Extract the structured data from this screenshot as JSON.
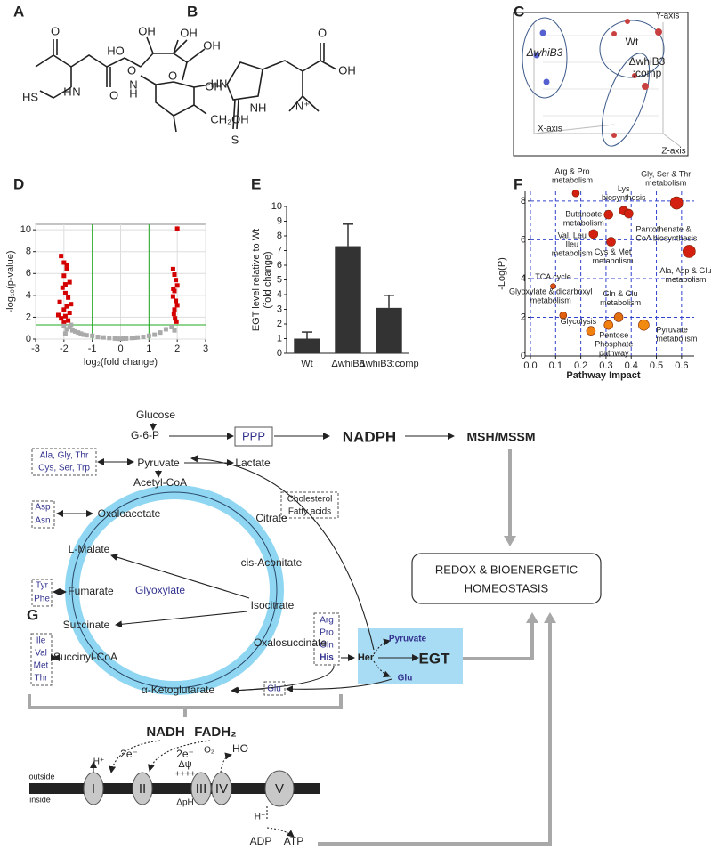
{
  "panel_labels": [
    "A",
    "B",
    "C",
    "D",
    "E",
    "F",
    "G"
  ],
  "structure_a": [
    "O",
    "H",
    "N",
    "HS",
    "O",
    "N",
    "H",
    "O",
    "HO",
    "OH",
    "OH",
    "OH",
    "O",
    "CH₂OH",
    "OH"
  ],
  "structure_b": [
    "HN",
    "NH",
    "S",
    "O",
    "OH",
    "N⁺"
  ],
  "pca": {
    "groups": [
      "ΔwhiB3",
      "Wt",
      "ΔwhiB3",
      ":comp"
    ],
    "axes": [
      "Y-axis",
      "X-axis",
      "Z-axis"
    ]
  },
  "chart_data": [
    {
      "type": "scatter",
      "xlabel": "log₂(fold change)",
      "ylabel": "-log₁₀(p-value)",
      "xlim": [
        -3,
        3
      ],
      "ylim": [
        0,
        10.5
      ],
      "xticks": [
        -3,
        -2,
        -1,
        0,
        1,
        2,
        3
      ],
      "yticks": [
        0,
        2,
        4,
        6,
        8,
        10
      ],
      "grid": true,
      "thresholds": {
        "x": [
          -1,
          1
        ],
        "y": 1.3
      },
      "threshold_color": "#22aa22",
      "series": [
        {
          "color": "#d40000",
          "x": [
            -2.1,
            -2.0,
            -1.9,
            -2.0,
            -1.8,
            -2.05,
            -1.95,
            -1.85,
            -2.15,
            -1.9,
            -2.0,
            -1.8,
            -1.95,
            -2.1,
            -1.85,
            -2.0,
            -1.9,
            -1.75,
            -2.2,
            -1.95,
            1.85,
            1.9,
            1.95,
            2.0,
            1.9,
            1.85,
            1.95,
            2.0,
            1.9,
            1.88,
            1.92,
            1.97,
            2.0,
            1.86
          ],
          "values": [
            7.6,
            7.0,
            6.4,
            5.8,
            5.2,
            4.7,
            4.2,
            3.8,
            3.4,
            3.0,
            2.7,
            2.4,
            2.1,
            1.9,
            1.7,
            1.5,
            6.8,
            3.2,
            2.2,
            5.0,
            6.4,
            5.9,
            5.4,
            4.9,
            4.4,
            3.9,
            3.5,
            3.1,
            2.7,
            2.3,
            1.9,
            1.6,
            10.1,
            4.6
          ]
        },
        {
          "color": "#aaaaaa",
          "x": [
            -2.0,
            -1.9,
            -1.8,
            -1.7,
            -1.6,
            -1.5,
            -1.4,
            -1.3,
            -1.2,
            -1.0,
            -0.8,
            -0.6,
            -0.4,
            -0.2,
            0,
            0.2,
            0.4,
            0.6,
            0.8,
            1.0,
            1.2,
            1.4,
            1.6,
            1.8,
            1.9,
            -1.95,
            -1.75,
            -0.1,
            0.1,
            0.5
          ],
          "values": [
            1.2,
            0.9,
            1.1,
            0.8,
            0.7,
            0.6,
            0.5,
            0.4,
            0.35,
            0.3,
            0.2,
            0.15,
            0.1,
            0.05,
            0.02,
            0.05,
            0.1,
            0.15,
            0.2,
            0.3,
            0.4,
            0.6,
            0.9,
            1.1,
            0.8,
            0.5,
            1.3,
            0.03,
            0.04,
            0.12
          ]
        }
      ]
    },
    {
      "type": "bar",
      "ylabel": [
        "EGT level relative to Wt",
        "(fold change)"
      ],
      "categories": [
        "Wt",
        "ΔwhiB3",
        "ΔwhiB3:comp"
      ],
      "values": [
        1,
        7.3,
        3.1
      ],
      "errors": [
        0.45,
        1.5,
        0.85
      ],
      "color": "#333333",
      "ylim": [
        0,
        10
      ],
      "yticks": [
        0,
        1,
        2,
        3,
        4,
        5,
        6,
        7,
        8,
        9,
        10
      ]
    },
    {
      "type": "bubble",
      "xlabel": "Pathway Impact",
      "ylabel": "-Log(P)",
      "xlim": [
        0,
        0.65
      ],
      "ylim": [
        0,
        8.5
      ],
      "xticks": [
        {
          "value": 0,
          "label": "0.0"
        },
        0.1,
        0.2,
        0.3,
        0.4,
        0.5,
        0.6
      ],
      "yticks": [
        0,
        2,
        4,
        6,
        8
      ],
      "grid": true,
      "grid_color": "#3344cc",
      "labels": [
        [
          "Arg & Pro",
          "metabolism"
        ],
        [
          "Gly, Ser & Thr",
          "metabolism"
        ],
        [
          "Lys",
          "biosynthesis"
        ],
        [
          "Butanoate",
          "metabolism"
        ],
        [
          "Pantothenate &",
          "CoA biosynthesis"
        ],
        [
          "Val, Leu",
          "Ileu",
          "metabolism"
        ],
        [
          "Cys & Met",
          "metabolism"
        ],
        [
          "Ala, Asp & Glu",
          "metabolism"
        ],
        [
          "TCA cycle"
        ],
        [
          "Glyoxylate & dicarboxyl",
          "metabolism"
        ],
        [
          "Gln & Glu",
          "metabolism"
        ],
        [
          "Glycolysis"
        ],
        [
          "Pentose",
          "Phosphate",
          "pathway"
        ],
        [
          "Pyruvate",
          "metabolism"
        ]
      ],
      "x": [
        0.18,
        0.58,
        0.37,
        0.31,
        0.39,
        0.25,
        0.32,
        0.63,
        0.09,
        0.13,
        0.35,
        0.24,
        0.31,
        0.45
      ],
      "values": [
        8.4,
        7.9,
        7.5,
        7.3,
        7.35,
        6.3,
        5.9,
        5.4,
        3.6,
        2.1,
        2.0,
        1.3,
        1.6,
        1.6
      ],
      "sizes": [
        4,
        7,
        5,
        5,
        5,
        5,
        5,
        7,
        3,
        4,
        5,
        5,
        5,
        6
      ],
      "colors": [
        "#d42010",
        "#d42010",
        "#d42010",
        "#d42010",
        "#d42010",
        "#d42010",
        "#d42010",
        "#d42010",
        "#e05010",
        "#e06010",
        "#e07010",
        "#f08010",
        "#f08010",
        "#f08a10"
      ]
    }
  ],
  "diagram": {
    "texts": [
      "Glucose",
      "G-6-P",
      "PPP",
      "NADPH",
      "MSH/MSSM",
      "Ala, Gly, Thr",
      "Cys, Ser, Trp",
      "Pyruvate",
      "Lactate",
      "Acetyl-CoA",
      "Asp",
      "Asn",
      "Oxaloacetate",
      "Cholesterol",
      "Fatty acids",
      "Citrate",
      "L-Malate",
      "cis-Aconitate",
      "Tyr",
      "Phe",
      "Fumarate",
      "Glyoxylate",
      "Isocitrate",
      "Succinate",
      "Arg",
      "Pro",
      "Gln",
      "His",
      "Oxalosuccinate",
      "Ile",
      "Val",
      "Met",
      "Thr",
      "Succinyl-CoA",
      "Her",
      "EGT",
      "Pyruvate",
      "Glu",
      "Glu",
      "α-Ketoglutarate",
      "REDOX & BIOENERGETIC",
      "HOMEOSTASIS",
      "NADH",
      "FADH₂",
      "2e⁻",
      "2e⁻",
      "outside",
      "inside",
      "I",
      "II",
      "III",
      "IV",
      "V",
      "H⁺",
      "Δψ",
      "++++",
      "ΔpH",
      "O₂",
      "HO",
      "H⁺",
      "ADP",
      "ATP"
    ]
  }
}
